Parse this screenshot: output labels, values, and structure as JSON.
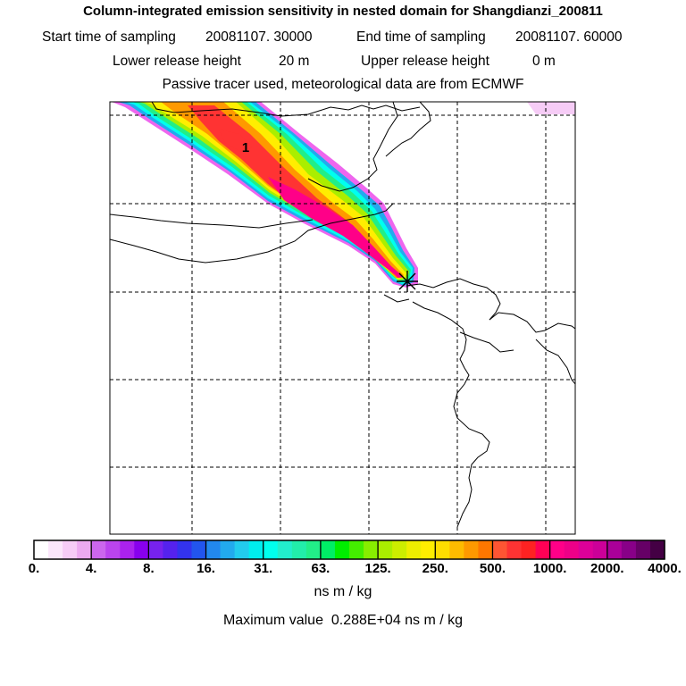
{
  "header": {
    "title": "Column-integrated emission sensitivity in nested domain for Shangdianzi_200811",
    "start_label": "Start time of sampling",
    "start_value": "20081107. 30000",
    "end_label": "End time of sampling",
    "end_value": "20081107. 60000",
    "lower_label": "Lower release height",
    "lower_value": "20 m",
    "upper_label": "Upper release height",
    "upper_value": "0 m",
    "tracer_note": "Passive tracer used, meteorological data are from ECMWF"
  },
  "map": {
    "marker_label": "1",
    "station_symbol": "*"
  },
  "colorbar": {
    "tick_labels": [
      "0.",
      "4.",
      "8.",
      "16.",
      "31.",
      "63.",
      "125.",
      "250.",
      "500.",
      "1000.",
      "2000.",
      "4000."
    ],
    "colors": [
      "#ffffff",
      "#fbe6fb",
      "#f6ccf6",
      "#ecaaf0",
      "#cc66ee",
      "#bb44ee",
      "#aa22ee",
      "#8800ee",
      "#7722ee",
      "#5522ee",
      "#3333ee",
      "#2255ee",
      "#2288ee",
      "#22aaee",
      "#22ccee",
      "#00eeee",
      "#00ffee",
      "#22eecc",
      "#22eeaa",
      "#22ee88",
      "#00ee66",
      "#00ee00",
      "#44ee00",
      "#88ee00",
      "#aaee00",
      "#ccee00",
      "#eeee00",
      "#ffee00",
      "#ffdd00",
      "#ffbb00",
      "#ff9900",
      "#ff7700",
      "#ff5533",
      "#ff3333",
      "#ff2222",
      "#ff0055",
      "#ff0088",
      "#ee0088",
      "#dd0099",
      "#cc0099",
      "#aa0099",
      "#880088",
      "#660066",
      "#440044"
    ],
    "units": "ns m / kg",
    "max_label": "Maximum value",
    "max_value": "0.288E+04 ns m / kg"
  }
}
